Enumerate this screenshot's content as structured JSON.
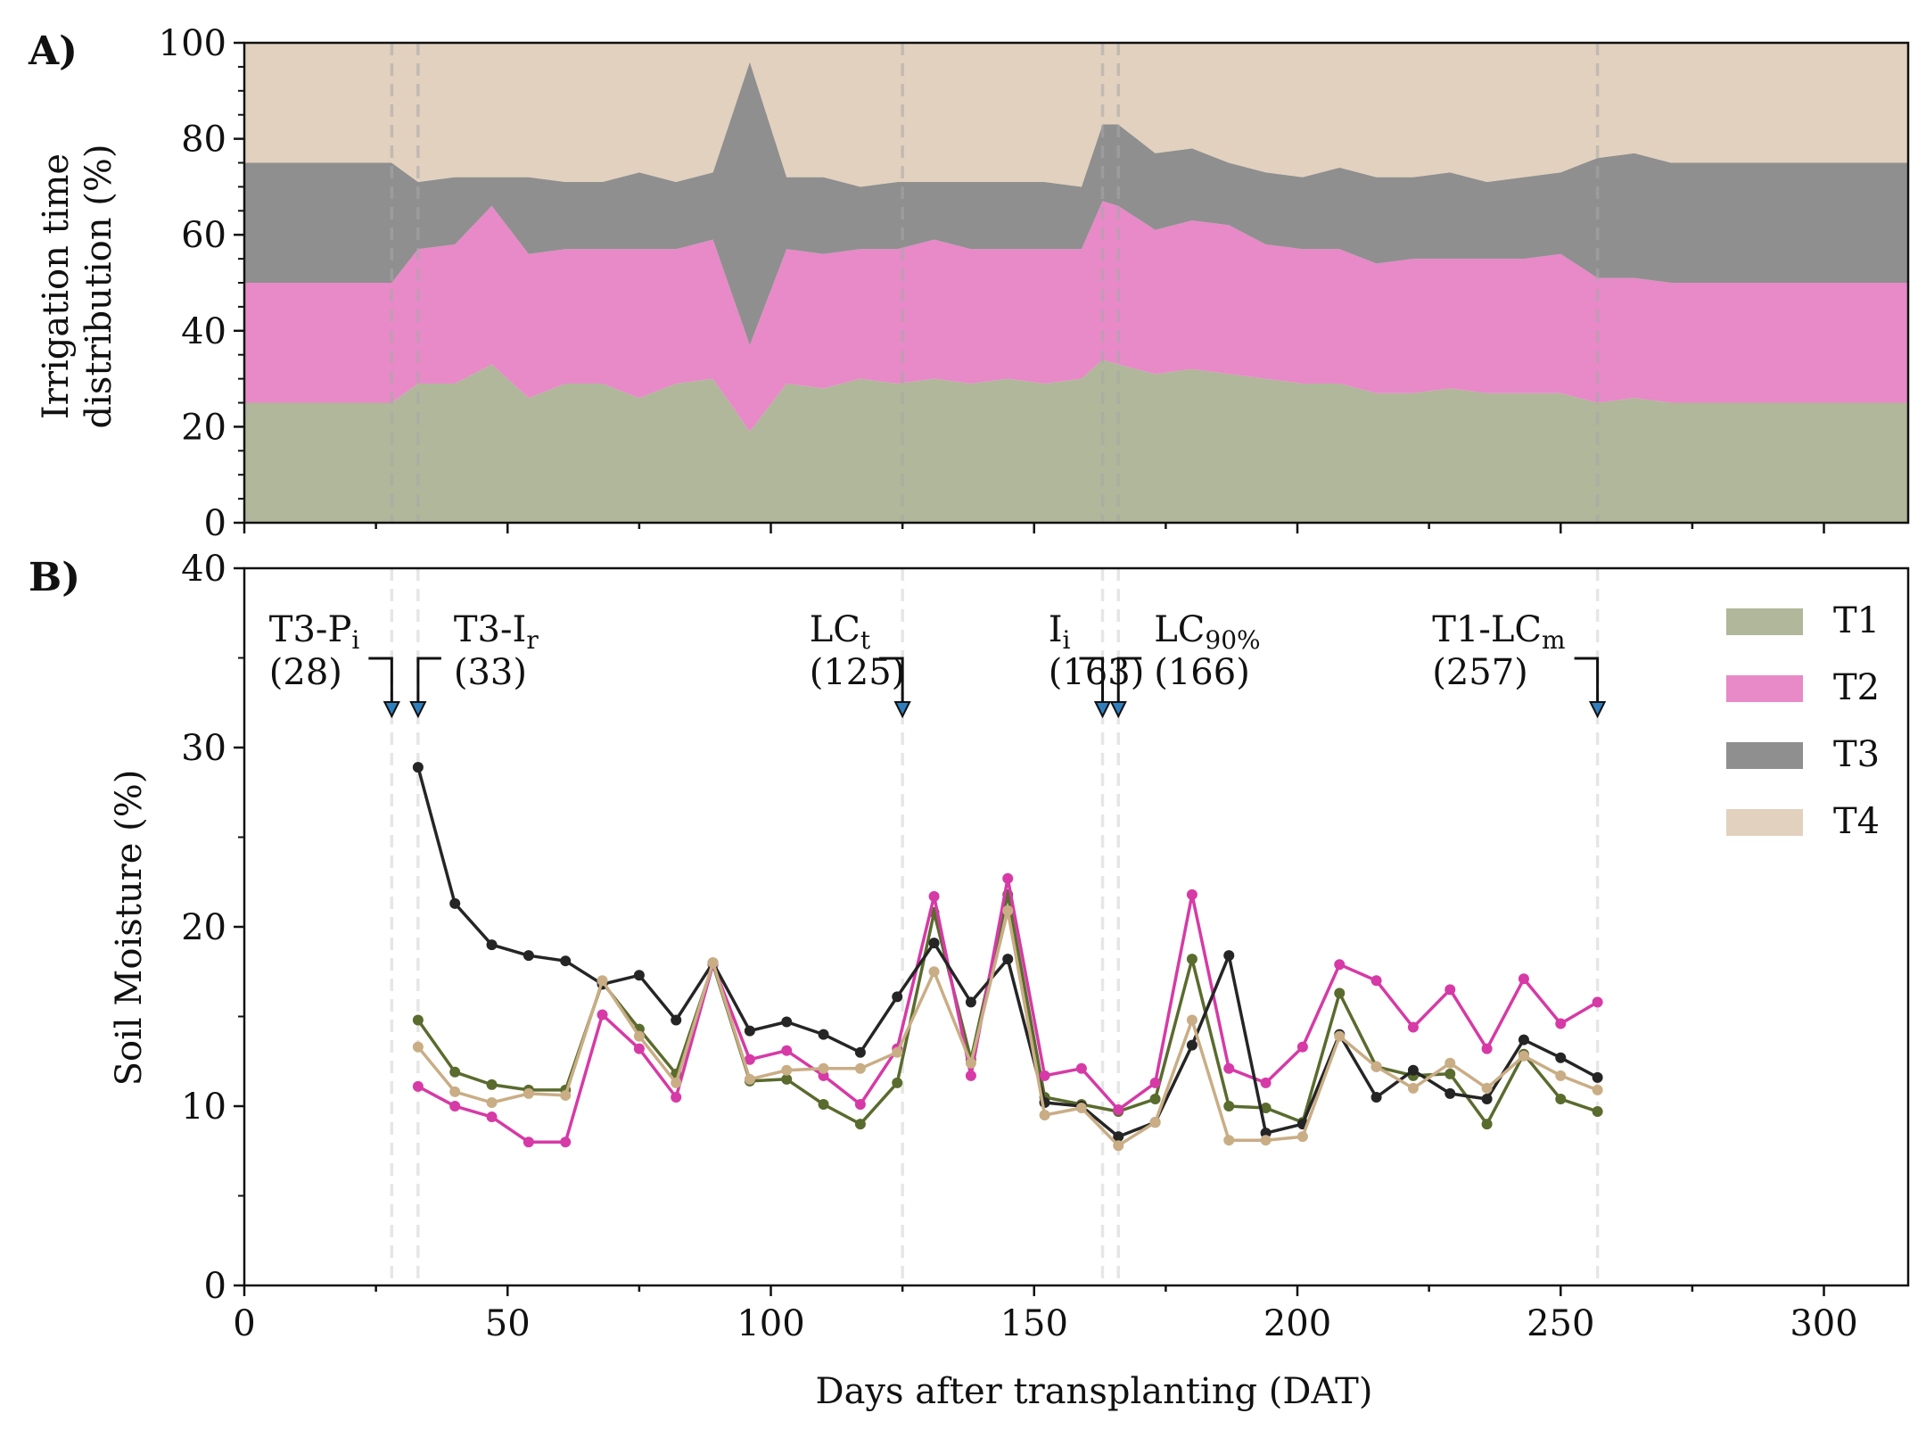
{
  "chart_data": [
    {
      "panel_label": "A)",
      "type": "area",
      "stacked": true,
      "ylabel_line1": "Irrigation time",
      "ylabel_line2": "distribution (%)",
      "xlim": [
        0,
        316
      ],
      "ylim": [
        0,
        100
      ],
      "yticks": [
        "0",
        "20",
        "40",
        "60",
        "80",
        "100"
      ],
      "x": [
        0,
        28,
        33,
        40,
        47,
        54,
        61,
        68,
        75,
        82,
        89,
        96,
        103,
        110,
        117,
        124,
        131,
        138,
        145,
        152,
        159,
        163,
        166,
        173,
        180,
        187,
        194,
        201,
        208,
        215,
        222,
        229,
        236,
        243,
        250,
        257,
        264,
        271,
        316
      ],
      "series": [
        {
          "name": "T1",
          "color": "#b0b79a",
          "values": [
            25,
            25,
            29,
            29,
            33,
            26,
            29,
            29,
            26,
            29,
            30,
            19,
            29,
            28,
            30,
            29,
            30,
            29,
            30,
            29,
            30,
            34,
            33,
            31,
            32,
            31,
            30,
            29,
            29,
            27,
            27,
            28,
            27,
            27,
            27,
            25,
            26,
            25,
            25
          ]
        },
        {
          "name": "T2",
          "color": "#e78ac7",
          "values": [
            25,
            25,
            28,
            29,
            33,
            30,
            28,
            28,
            31,
            28,
            29,
            18,
            28,
            28,
            27,
            28,
            29,
            28,
            27,
            28,
            27,
            33,
            33,
            30,
            31,
            31,
            28,
            28,
            28,
            27,
            28,
            27,
            28,
            28,
            29,
            26,
            25,
            25,
            25
          ]
        },
        {
          "name": "T3",
          "color": "#8f8f8f",
          "values": [
            25,
            25,
            14,
            14,
            6,
            16,
            14,
            14,
            16,
            14,
            14,
            59,
            15,
            16,
            13,
            14,
            12,
            14,
            14,
            14,
            13,
            16,
            17,
            16,
            15,
            13,
            15,
            15,
            17,
            18,
            17,
            18,
            16,
            17,
            17,
            25,
            26,
            25,
            25
          ]
        },
        {
          "name": "T4",
          "color": "#e2d1be",
          "values": [
            25,
            25,
            29,
            28,
            28,
            28,
            29,
            29,
            27,
            29,
            27,
            4,
            28,
            28,
            30,
            29,
            29,
            29,
            29,
            29,
            30,
            17,
            17,
            23,
            22,
            25,
            27,
            28,
            26,
            28,
            28,
            27,
            29,
            28,
            27,
            24,
            23,
            25,
            25
          ]
        }
      ]
    },
    {
      "panel_label": "B)",
      "type": "line",
      "xlabel": "Days after transplanting (DAT)",
      "ylabel": "Soil Moisture (%)",
      "xlim": [
        0,
        316
      ],
      "ylim": [
        0,
        40
      ],
      "xticks": [
        "0",
        "50",
        "100",
        "150",
        "200",
        "250",
        "300"
      ],
      "yticks": [
        "0",
        "10",
        "20",
        "30",
        "40"
      ],
      "legend_position": "top-right",
      "events": [
        {
          "day": 28,
          "name": "T3-P",
          "sub": "i",
          "day_label": "(28)",
          "side": "left"
        },
        {
          "day": 33,
          "name": "T3-I",
          "sub": "r",
          "day_label": "(33)",
          "side": "right"
        },
        {
          "day": 125,
          "name": "LC",
          "sub": "t",
          "day_label": "(125)",
          "side": "left"
        },
        {
          "day": 163,
          "name": "I",
          "sub": "i",
          "day_label": "(163)",
          "side": "left"
        },
        {
          "day": 166,
          "name": "LC",
          "sub": "90%",
          "day_label": "(166)",
          "side": "right"
        },
        {
          "day": 257,
          "name": "T1-LC",
          "sub": "m",
          "day_label": "(257)",
          "side": "left"
        }
      ],
      "x": [
        33,
        40,
        47,
        54,
        61,
        68,
        75,
        82,
        89,
        96,
        103,
        110,
        117,
        124,
        131,
        138,
        145,
        152,
        159,
        166,
        173,
        180,
        187,
        194,
        201,
        208,
        215,
        222,
        229,
        236,
        243,
        250,
        257
      ],
      "series": [
        {
          "name": "T1",
          "color": "#5a6b2e",
          "values": [
            14.8,
            11.9,
            11.2,
            10.9,
            10.9,
            16.9,
            14.3,
            11.8,
            17.9,
            11.4,
            11.5,
            10.1,
            9.0,
            11.3,
            20.8,
            12.6,
            21.8,
            10.5,
            10.1,
            9.7,
            10.4,
            18.2,
            10.0,
            9.9,
            9.1,
            16.3,
            12.2,
            11.7,
            11.8,
            9.0,
            12.9,
            10.4,
            9.7
          ]
        },
        {
          "name": "T2",
          "color": "#d63aa6",
          "values": [
            11.1,
            10.0,
            9.4,
            8.0,
            8.0,
            15.1,
            13.2,
            10.5,
            17.9,
            12.6,
            13.1,
            11.7,
            10.1,
            13.2,
            21.7,
            11.7,
            22.7,
            11.7,
            12.1,
            9.8,
            11.3,
            21.8,
            12.1,
            11.3,
            13.3,
            17.9,
            17.0,
            14.4,
            16.5,
            13.2,
            17.1,
            14.6,
            15.8
          ]
        },
        {
          "name": "T3",
          "color": "#252525",
          "values": [
            28.9,
            21.3,
            19.0,
            18.4,
            18.1,
            16.8,
            17.3,
            14.8,
            18.0,
            14.2,
            14.7,
            14.0,
            13.0,
            16.1,
            19.1,
            15.8,
            18.2,
            10.2,
            10.0,
            8.3,
            9.1,
            13.4,
            18.4,
            8.5,
            9.0,
            14.0,
            10.5,
            12.0,
            10.7,
            10.4,
            13.7,
            12.7,
            11.6
          ]
        },
        {
          "name": "T4",
          "color": "#c9ad85",
          "values": [
            13.3,
            10.8,
            10.2,
            10.7,
            10.6,
            17.0,
            13.9,
            11.3,
            18.0,
            11.5,
            12.0,
            12.1,
            12.1,
            13.0,
            17.5,
            12.4,
            20.9,
            9.5,
            9.9,
            7.8,
            9.1,
            14.8,
            8.1,
            8.1,
            8.3,
            13.9,
            12.2,
            11.0,
            12.4,
            11.0,
            12.8,
            11.7,
            10.9
          ]
        }
      ]
    }
  ]
}
